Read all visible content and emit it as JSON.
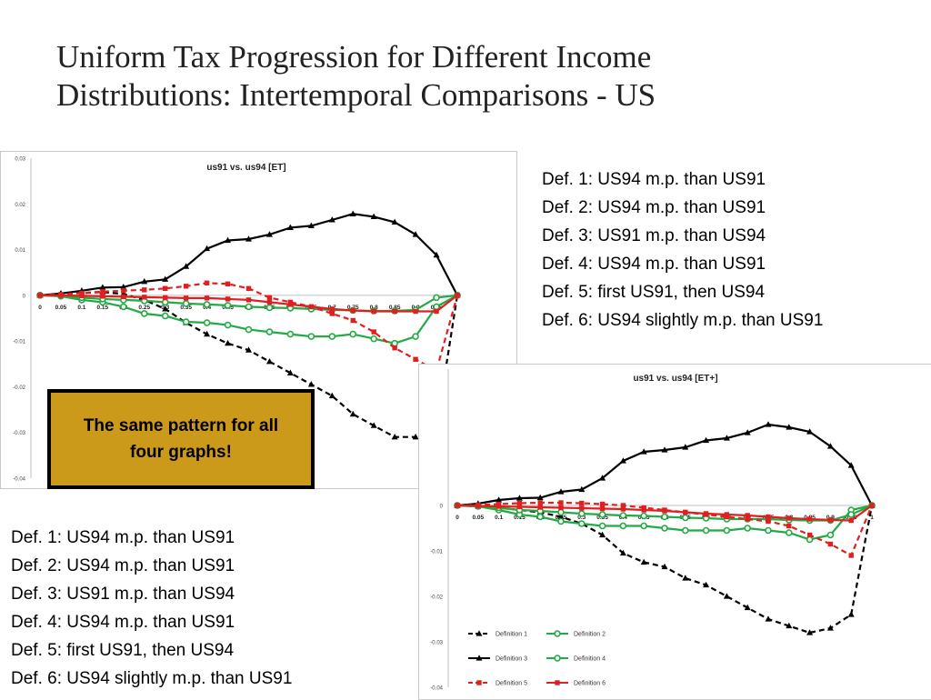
{
  "slide": {
    "title_line1": "Uniform Tax Progression for Different Income",
    "title_line2": "Distributions: Intertemporal Comparisons - US"
  },
  "definitions_right": [
    "Def. 1: US94 m.p. than US91",
    "Def. 2: US94 m.p. than US91",
    "Def. 3: US91 m.p. than US94",
    "Def. 4: US94 m.p. than US91",
    "Def. 5: first US91, then US94",
    "Def. 6: US94 slightly m.p. than US91"
  ],
  "definitions_left": [
    "Def. 1: US94 m.p. than US91",
    "Def. 2: US94 m.p. than US91",
    "Def. 3: US91 m.p. than US94",
    "Def. 4: US94 m.p. than US91",
    "Def. 5: first US91, then US94",
    "Def. 6: US94 slightly m.p. than US91"
  ],
  "callout": {
    "text": "The same pattern for all four graphs!",
    "background": "#cc9a1a"
  },
  "chart_data": [
    {
      "type": "line",
      "title": "us91 vs. us94 [ET]",
      "xlabel": "",
      "ylabel": "",
      "x": [
        0,
        0.05,
        0.1,
        0.15,
        0.2,
        0.25,
        0.3,
        0.35,
        0.4,
        0.45,
        0.5,
        0.55,
        0.6,
        0.65,
        0.7,
        0.75,
        0.8,
        0.85,
        0.9,
        0.95,
        1
      ],
      "x_tick_labels": [
        "0",
        "0.05",
        "0.1",
        "0.15",
        "0.2",
        "0.25",
        "0.3",
        "0.35",
        "0.4",
        "0.45",
        "0.5",
        "0.55",
        "0.6",
        "0.65",
        "0.7",
        "0.75",
        "0.8",
        "0.85",
        "0.9",
        "0.95"
      ],
      "ylim": [
        -0.04,
        0.03
      ],
      "y_ticks": [
        0.03,
        0.02,
        0.01,
        0,
        -0.01,
        -0.02,
        -0.03,
        -0.04
      ],
      "y_tick_labels": [
        "0.03",
        "0.02",
        "0.01",
        "0",
        "-0.01",
        "-0.02",
        "-0.03",
        "-0.04"
      ],
      "grid": false,
      "legend_visible": false,
      "series": [
        {
          "color": "#000000",
          "dash": true,
          "marker": "triangle",
          "values": [
            0,
            0.0003,
            0.0005,
            0.0007,
            0.0003,
            -0.001,
            -0.003,
            -0.006,
            -0.0085,
            -0.0105,
            -0.012,
            -0.0145,
            -0.017,
            -0.0195,
            -0.022,
            -0.026,
            -0.0285,
            -0.031,
            -0.031,
            -0.029,
            0
          ]
        },
        {
          "color": "#22aa44",
          "dash": false,
          "marker": "circle",
          "values": [
            0,
            -0.0002,
            -0.001,
            -0.0015,
            -0.0025,
            -0.004,
            -0.0045,
            -0.0058,
            -0.006,
            -0.0065,
            -0.0075,
            -0.008,
            -0.0085,
            -0.009,
            -0.009,
            -0.0085,
            -0.0095,
            -0.0105,
            -0.009,
            -0.0025,
            0
          ]
        },
        {
          "color": "#000000",
          "dash": false,
          "marker": "triangle",
          "values": [
            0,
            0.0004,
            0.001,
            0.0017,
            0.0018,
            0.003,
            0.0035,
            0.0063,
            0.0102,
            0.012,
            0.0123,
            0.0133,
            0.0148,
            0.0152,
            0.0165,
            0.0178,
            0.0172,
            0.016,
            0.0133,
            0.0088,
            0
          ]
        },
        {
          "color": "#22aa44",
          "dash": false,
          "marker": "circle",
          "values": [
            0,
            -0.0001,
            -0.0005,
            -0.0008,
            -0.001,
            -0.0012,
            -0.0015,
            -0.0018,
            -0.002,
            -0.0022,
            -0.0025,
            -0.0027,
            -0.0028,
            -0.003,
            -0.0032,
            -0.0033,
            -0.0034,
            -0.0034,
            -0.0032,
            -0.0005,
            0
          ]
        },
        {
          "color": "#e02020",
          "dash": true,
          "marker": "square",
          "values": [
            0,
            0.0002,
            0.0005,
            0.0008,
            0.001,
            0.0012,
            0.0015,
            0.002,
            0.0027,
            0.0025,
            0.0015,
            -0.0005,
            -0.0015,
            -0.0025,
            -0.004,
            -0.0055,
            -0.008,
            -0.0115,
            -0.014,
            -0.0165,
            0
          ]
        },
        {
          "color": "#e02020",
          "dash": false,
          "marker": "square",
          "values": [
            0,
            0,
            -0.0001,
            -0.0002,
            -0.0003,
            -0.0004,
            -0.0005,
            -0.0006,
            -0.0006,
            -0.0008,
            -0.001,
            -0.0015,
            -0.002,
            -0.0025,
            -0.003,
            -0.0033,
            -0.0035,
            -0.0035,
            -0.0035,
            -0.0035,
            0
          ]
        }
      ]
    },
    {
      "type": "line",
      "title": "us91 vs. us94 [ET+]",
      "xlabel": "",
      "ylabel": "",
      "x": [
        0,
        0.05,
        0.1,
        0.15,
        0.2,
        0.25,
        0.3,
        0.35,
        0.4,
        0.45,
        0.5,
        0.55,
        0.6,
        0.65,
        0.7,
        0.75,
        0.8,
        0.85,
        0.9,
        0.95,
        1
      ],
      "x_tick_labels": [
        "0",
        "0.05",
        "0.1",
        "0.15",
        "0.2",
        "0.25",
        "0.3",
        "0.35",
        "0.4",
        "0.45",
        "0.5",
        "0.55",
        "0.6",
        "0.65",
        "0.7",
        "0.75",
        "0.8",
        "0.85",
        "0.9",
        "0.95",
        "1"
      ],
      "ylim": [
        -0.04,
        0.03
      ],
      "y_ticks": [
        0,
        -0.01,
        -0.02,
        -0.03,
        -0.04
      ],
      "y_tick_labels": [
        "0",
        "-0.01",
        "-0.02",
        "-0.03",
        "-0.04"
      ],
      "grid": false,
      "legend_position": "bottom",
      "series": [
        {
          "name": "Definition 1",
          "color": "#000000",
          "dash": true,
          "marker": "triangle",
          "values": [
            0,
            -0.0002,
            -0.0005,
            -0.001,
            -0.0015,
            -0.0025,
            -0.004,
            -0.0065,
            -0.0105,
            -0.0125,
            -0.0135,
            -0.016,
            -0.0175,
            -0.02,
            -0.0225,
            -0.025,
            -0.0265,
            -0.028,
            -0.027,
            -0.024,
            0
          ]
        },
        {
          "name": "Definition 2",
          "color": "#22aa44",
          "dash": false,
          "marker": "circle",
          "values": [
            0,
            -0.0002,
            -0.001,
            -0.002,
            -0.0025,
            -0.0035,
            -0.004,
            -0.0045,
            -0.0045,
            -0.0045,
            -0.005,
            -0.0055,
            -0.0055,
            -0.0055,
            -0.005,
            -0.0055,
            -0.006,
            -0.0075,
            -0.0065,
            -0.001,
            0
          ]
        },
        {
          "name": "Definition 3",
          "color": "#000000",
          "dash": false,
          "marker": "triangle",
          "values": [
            0,
            0.0004,
            0.0012,
            0.0016,
            0.0017,
            0.003,
            0.0035,
            0.006,
            0.0098,
            0.0118,
            0.0122,
            0.0128,
            0.0143,
            0.0148,
            0.016,
            0.0178,
            0.0172,
            0.0162,
            0.013,
            0.0088,
            0
          ]
        },
        {
          "name": "Definition 4",
          "color": "#22aa44",
          "dash": false,
          "marker": "circle",
          "values": [
            0,
            -0.0001,
            -0.0005,
            -0.001,
            -0.0012,
            -0.0015,
            -0.0018,
            -0.002,
            -0.0022,
            -0.0023,
            -0.0025,
            -0.0027,
            -0.0028,
            -0.003,
            -0.003,
            -0.003,
            -0.0032,
            -0.0033,
            -0.0033,
            -0.002,
            0
          ]
        },
        {
          "name": "Definition 5",
          "color": "#e02020",
          "dash": true,
          "marker": "square",
          "values": [
            0,
            0.0001,
            0.0003,
            0.0005,
            0.0006,
            0.0006,
            0.0005,
            0.0003,
            0,
            -0.0005,
            -0.001,
            -0.0015,
            -0.002,
            -0.0025,
            -0.003,
            -0.0035,
            -0.0045,
            -0.0065,
            -0.0085,
            -0.011,
            0
          ]
        },
        {
          "name": "Definition 6",
          "color": "#e02020",
          "dash": false,
          "marker": "square",
          "values": [
            0,
            -0.0001,
            -0.0002,
            -0.0003,
            -0.0004,
            -0.0005,
            -0.0006,
            -0.0007,
            -0.0008,
            -0.001,
            -0.0012,
            -0.0015,
            -0.0018,
            -0.002,
            -0.0022,
            -0.0025,
            -0.0028,
            -0.003,
            -0.0032,
            -0.0033,
            0
          ]
        }
      ]
    }
  ]
}
